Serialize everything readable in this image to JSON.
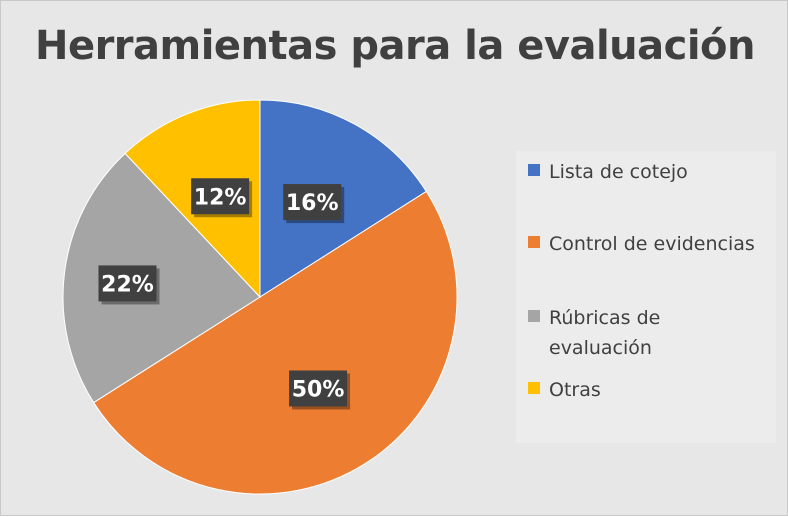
{
  "chart_data": {
    "type": "pie",
    "title": "Herramientas para la evaluación",
    "categories": [
      "Lista de cotejo",
      "Control de evidencias",
      "Rúbricas de evaluación",
      "Otras"
    ],
    "values": [
      16,
      50,
      22,
      12
    ],
    "data_labels": [
      "16%",
      "50%",
      "22%",
      "12%"
    ],
    "colors": [
      "#4472c4",
      "#ed7d31",
      "#a5a5a5",
      "#ffc000"
    ],
    "legend": "right"
  }
}
